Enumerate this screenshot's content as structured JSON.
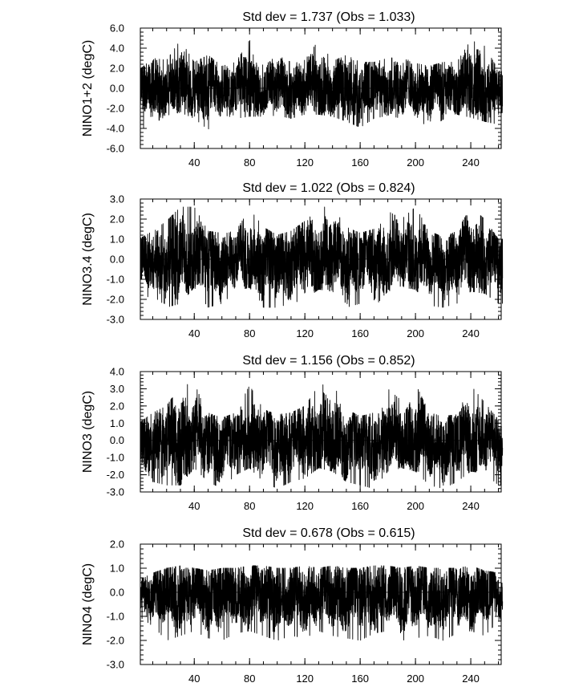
{
  "chart_data": [
    {
      "type": "line",
      "title": "Std dev = 1.737 (Obs = 1.033)",
      "ylabel": "NINO1+2 (degC)",
      "xlabel": "",
      "xlim": [
        1,
        262
      ],
      "ylim": [
        -6.0,
        6.0
      ],
      "ytick_labels": [
        "-6.0",
        "-4.0",
        "-2.0",
        "0.0",
        "2.0",
        "4.0",
        "6.0"
      ],
      "xtick_labels": [
        "40",
        "80",
        "120",
        "160",
        "200",
        "240"
      ],
      "zero_line": true,
      "grid": false,
      "series": [
        {
          "line_color": "#000000",
          "x": [
            0,
            10,
            20,
            30,
            40,
            50,
            60,
            70,
            80,
            90,
            100,
            110,
            120,
            130,
            140,
            150,
            160,
            170,
            180,
            190,
            200,
            210,
            220,
            230,
            240,
            250,
            260
          ],
          "high": [
            1.8,
            3.0,
            2.8,
            4.8,
            2.6,
            3.3,
            2.2,
            2.6,
            4.8,
            2.2,
            3.3,
            2.6,
            2.8,
            4.8,
            2.7,
            3.3,
            2.6,
            2.6,
            3.0,
            3.1,
            2.5,
            2.2,
            2.6,
            2.6,
            4.8,
            4.2,
            1.8
          ],
          "low": [
            -4.2,
            -3.6,
            -2.7,
            -2.4,
            -3.0,
            -4.1,
            -2.6,
            -3.0,
            -2.8,
            -2.8,
            -2.7,
            -3.0,
            -2.6,
            -2.6,
            -2.8,
            -3.3,
            -3.9,
            -3.0,
            -2.7,
            -3.0,
            -2.7,
            -4.1,
            -3.1,
            -2.6,
            -2.9,
            -3.3,
            -3.6
          ]
        }
      ]
    },
    {
      "type": "line",
      "title": "Std dev = 1.022 (Obs = 0.824)",
      "ylabel": "NINO3.4 (degC)",
      "xlabel": "",
      "xlim": [
        1,
        262
      ],
      "ylim": [
        -3.0,
        3.0
      ],
      "ytick_labels": [
        "-3.0",
        "-2.0",
        "-1.0",
        "0.0",
        "1.0",
        "2.0",
        "3.0"
      ],
      "xtick_labels": [
        "40",
        "80",
        "120",
        "160",
        "200",
        "240"
      ],
      "zero_line": true,
      "grid": false,
      "series": [
        {
          "line_color": "#000000",
          "x": [
            0,
            10,
            20,
            30,
            40,
            50,
            60,
            70,
            80,
            90,
            100,
            110,
            120,
            130,
            140,
            150,
            160,
            170,
            180,
            190,
            200,
            210,
            220,
            230,
            240,
            250,
            260
          ],
          "high": [
            1.0,
            1.4,
            1.9,
            2.6,
            2.6,
            1.4,
            1.3,
            1.4,
            2.5,
            1.6,
            1.2,
            1.4,
            1.9,
            2.6,
            2.6,
            1.6,
            1.3,
            1.5,
            2.4,
            2.0,
            2.6,
            1.4,
            1.1,
            1.4,
            2.6,
            2.0,
            1.0
          ],
          "low": [
            -2.0,
            -1.8,
            -2.4,
            -2.2,
            -1.4,
            -2.4,
            -2.2,
            -1.6,
            -1.4,
            -2.4,
            -2.4,
            -2.2,
            -2.0,
            -1.5,
            -1.6,
            -2.4,
            -2.2,
            -2.4,
            -1.6,
            -1.4,
            -1.5,
            -2.3,
            -2.4,
            -2.2,
            -1.6,
            -1.7,
            -2.2
          ]
        }
      ]
    },
    {
      "type": "line",
      "title": "Std dev = 1.156 (Obs = 0.852)",
      "ylabel": "NINO3 (degC)",
      "xlabel": "",
      "xlim": [
        1,
        262
      ],
      "ylim": [
        -3.0,
        4.0
      ],
      "ytick_labels": [
        "-3.0",
        "-2.0",
        "-1.0",
        "0.0",
        "1.0",
        "2.0",
        "3.0",
        "4.0"
      ],
      "xtick_labels": [
        "40",
        "80",
        "120",
        "160",
        "200",
        "240"
      ],
      "zero_line": true,
      "grid": false,
      "series": [
        {
          "line_color": "#000000",
          "x": [
            0,
            10,
            20,
            30,
            40,
            50,
            60,
            70,
            80,
            90,
            100,
            110,
            120,
            130,
            140,
            150,
            160,
            170,
            180,
            190,
            200,
            210,
            220,
            230,
            240,
            250,
            260
          ],
          "high": [
            1.0,
            1.6,
            2.0,
            3.2,
            3.3,
            1.6,
            1.3,
            1.6,
            3.2,
            1.8,
            1.5,
            1.6,
            2.0,
            3.2,
            3.3,
            1.8,
            1.4,
            1.6,
            3.0,
            2.3,
            3.3,
            1.6,
            1.4,
            1.5,
            3.2,
            2.2,
            1.2
          ],
          "low": [
            -2.8,
            -2.4,
            -2.6,
            -2.6,
            -1.6,
            -2.4,
            -2.8,
            -2.0,
            -1.6,
            -2.4,
            -2.8,
            -2.4,
            -2.2,
            -1.6,
            -1.8,
            -2.4,
            -2.6,
            -2.8,
            -1.8,
            -1.6,
            -1.8,
            -2.6,
            -2.8,
            -2.4,
            -1.8,
            -1.9,
            -2.6
          ]
        }
      ]
    },
    {
      "type": "line",
      "title": "Std dev = 0.678 (Obs = 0.615)",
      "ylabel": "NINO4 (degC)",
      "xlabel": "",
      "xlim": [
        1,
        262
      ],
      "ylim": [
        -3.0,
        2.0
      ],
      "ytick_labels": [
        "-3.0",
        "-2.0",
        "-1.0",
        "0.0",
        "1.0",
        "2.0"
      ],
      "xtick_labels": [
        "40",
        "80",
        "120",
        "160",
        "200",
        "240"
      ],
      "zero_line": true,
      "grid": false,
      "series": [
        {
          "line_color": "#000000",
          "x": [
            0,
            10,
            20,
            30,
            40,
            50,
            60,
            70,
            80,
            90,
            100,
            110,
            120,
            130,
            140,
            150,
            160,
            170,
            180,
            190,
            200,
            210,
            220,
            230,
            240,
            250,
            260
          ],
          "high": [
            0.5,
            0.8,
            1.0,
            1.1,
            1.0,
            0.9,
            1.0,
            1.0,
            1.1,
            1.1,
            1.0,
            1.0,
            1.1,
            1.0,
            1.1,
            1.0,
            1.0,
            1.1,
            1.1,
            1.0,
            1.1,
            1.0,
            1.0,
            1.0,
            1.1,
            0.9,
            0.8
          ],
          "low": [
            -1.0,
            -1.4,
            -2.0,
            -1.8,
            -1.6,
            -1.9,
            -2.0,
            -1.7,
            -1.6,
            -1.8,
            -2.0,
            -1.8,
            -1.9,
            -1.6,
            -1.8,
            -1.9,
            -2.0,
            -1.7,
            -1.6,
            -2.0,
            -1.9,
            -1.8,
            -2.0,
            -1.7,
            -1.6,
            -1.8,
            -1.2
          ]
        }
      ]
    }
  ]
}
